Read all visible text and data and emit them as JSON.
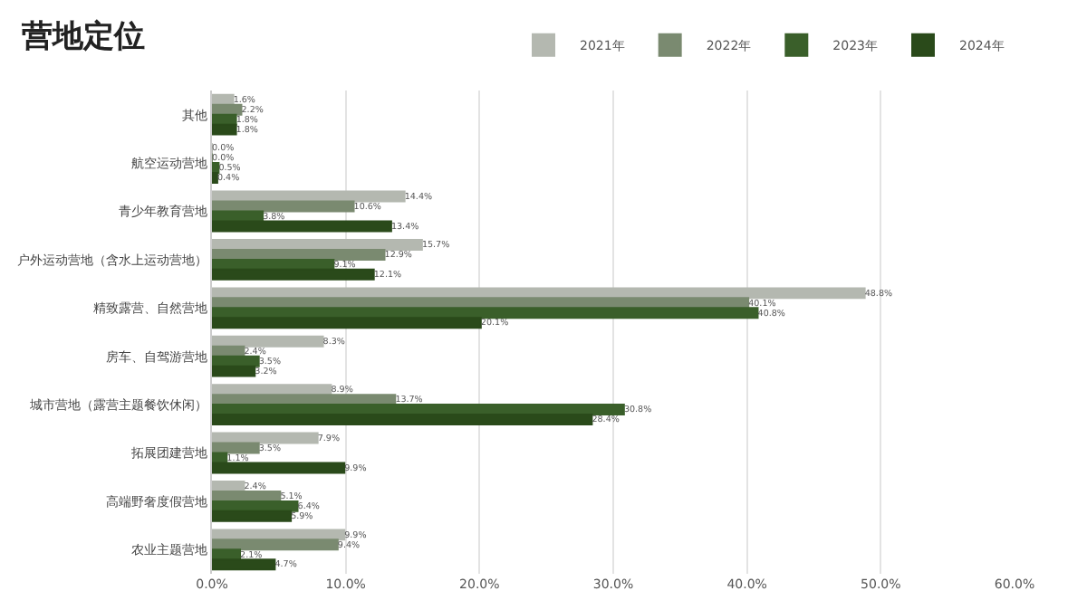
{
  "chart_data": {
    "type": "bar",
    "orientation": "horizontal",
    "title": "营地定位",
    "categories": [
      "其他",
      "航空运动营地",
      "青少年教育营地",
      "户外运动营地（含水上运动营地）",
      "精致露营、自然营地",
      "房车、自驾游营地",
      "城市营地（露营主题餐饮休闲）",
      "拓展团建营地",
      "高端野奢度假营地",
      "农业主题营地"
    ],
    "series": [
      {
        "name": "2021年",
        "color": "#b4b8b0",
        "values": [
          1.6,
          0.0,
          14.4,
          15.7,
          48.8,
          8.3,
          8.9,
          7.9,
          2.4,
          9.9
        ],
        "value_labels": [
          "1.6%",
          "0.0%",
          "14.4%",
          "15.7%",
          "48.8%",
          "8.3%",
          "8.9%",
          "7.9%",
          "2.4%",
          "9.9%"
        ]
      },
      {
        "name": "2022年",
        "color": "#7a8a70",
        "values": [
          2.2,
          0.0,
          10.6,
          12.9,
          40.1,
          2.4,
          13.7,
          3.5,
          5.1,
          9.4
        ],
        "value_labels": [
          "2.2%",
          "0.0%",
          "10.6%",
          "12.9%",
          "40.1%",
          "2.4%",
          "13.7%",
          "3.5%",
          "5.1%",
          "9.4%"
        ]
      },
      {
        "name": "2023年",
        "color": "#3a5f2a",
        "values": [
          1.8,
          0.5,
          3.8,
          9.1,
          40.8,
          3.5,
          30.8,
          1.1,
          6.4,
          2.1
        ],
        "value_labels": [
          "1.8%",
          "0.5%",
          "3.8%",
          "9.1%",
          "40.8%",
          "3.5%",
          "30.8%",
          "1.1%",
          "6.4%",
          "2.1%"
        ]
      },
      {
        "name": "2024年",
        "color": "#2a4a1a",
        "values": [
          1.8,
          0.4,
          13.4,
          12.1,
          20.1,
          3.2,
          28.4,
          9.9,
          5.9,
          4.7
        ],
        "value_labels": [
          "1.8%",
          "0.4%",
          "13.4%",
          "12.1%",
          "20.1%",
          "3.2%",
          "28.4%",
          "9.9%",
          "5.9%",
          "4.7%"
        ]
      }
    ],
    "xlim": [
      0,
      60
    ],
    "xticks": [
      {
        "value": 0,
        "label": "0.0%"
      },
      {
        "value": 10,
        "label": "10.0%"
      },
      {
        "value": 20,
        "label": "20.0%"
      },
      {
        "value": 30,
        "label": "30.0%"
      },
      {
        "value": 40,
        "label": "40.0%"
      },
      {
        "value": 50,
        "label": "50.0%"
      },
      {
        "value": 60,
        "label": "60.0%"
      }
    ],
    "grid": "x",
    "legend": "top right"
  }
}
